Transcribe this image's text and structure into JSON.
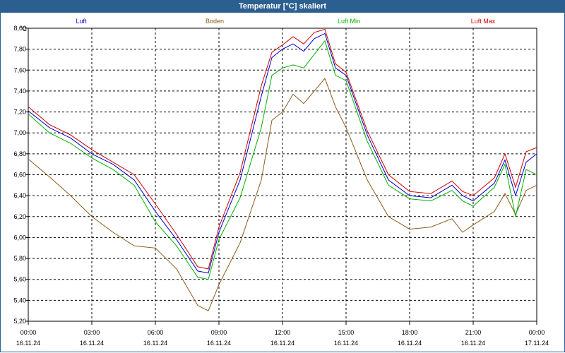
{
  "window": {
    "title": "Temperatur [°C] skaliert"
  },
  "chart_data": {
    "type": "line",
    "title": "Temperatur [°C] skaliert",
    "ylabel": "°C",
    "ylim": [
      5.2,
      8.0
    ],
    "grid": true,
    "legend_placement": "top",
    "y_ticks": [
      "8,00",
      "7,80",
      "7,60",
      "7,40",
      "7,20",
      "7,00",
      "6,80",
      "6,60",
      "6,40",
      "6,20",
      "6,00",
      "5,80",
      "5,60",
      "5,40",
      "5,20"
    ],
    "x_ticks": [
      {
        "time": "00:00",
        "date": "16.11.24"
      },
      {
        "time": "03:00",
        "date": "16.11.24"
      },
      {
        "time": "06:00",
        "date": "16.11.24"
      },
      {
        "time": "09:00",
        "date": "16.11.24"
      },
      {
        "time": "12:00",
        "date": "16.11.24"
      },
      {
        "time": "15:00",
        "date": "16.11.24"
      },
      {
        "time": "18:00",
        "date": "16.11.24"
      },
      {
        "time": "21:00",
        "date": "16.11.24"
      },
      {
        "time": "00:00",
        "date": "17.11.24"
      }
    ],
    "x_hours": [
      0,
      1,
      2,
      3,
      4,
      5,
      6,
      7,
      8,
      8.5,
      9,
      10,
      11,
      11.5,
      12,
      12.5,
      13,
      13.5,
      14,
      14.5,
      15,
      16,
      17,
      18,
      19,
      20,
      20.5,
      21,
      22,
      22.5,
      23,
      23.5,
      24
    ],
    "series": [
      {
        "name": "Luft",
        "color": "#0000cc",
        "values": [
          7.21,
          7.05,
          6.95,
          6.8,
          6.7,
          6.55,
          6.25,
          5.98,
          5.68,
          5.66,
          6.05,
          6.55,
          7.35,
          7.72,
          7.8,
          7.85,
          7.78,
          7.9,
          7.95,
          7.62,
          7.55,
          6.98,
          6.55,
          6.4,
          6.38,
          6.5,
          6.4,
          6.35,
          6.52,
          6.74,
          6.4,
          6.72,
          6.8
        ]
      },
      {
        "name": "Boden",
        "color": "#8b5a1a",
        "values": [
          6.75,
          6.58,
          6.4,
          6.2,
          6.05,
          5.92,
          5.9,
          5.7,
          5.35,
          5.3,
          5.55,
          5.95,
          6.55,
          7.12,
          7.2,
          7.37,
          7.28,
          7.4,
          7.52,
          7.25,
          7.05,
          6.55,
          6.2,
          6.08,
          6.1,
          6.18,
          6.05,
          6.12,
          6.25,
          6.42,
          6.22,
          6.45,
          6.5
        ]
      },
      {
        "name": "Luft Min",
        "color": "#00b000",
        "values": [
          7.18,
          7.0,
          6.9,
          6.76,
          6.65,
          6.5,
          6.15,
          5.92,
          5.62,
          5.6,
          5.98,
          6.38,
          7.05,
          7.55,
          7.62,
          7.65,
          7.62,
          7.75,
          7.88,
          7.55,
          7.5,
          6.92,
          6.5,
          6.37,
          6.35,
          6.45,
          6.35,
          6.3,
          6.48,
          6.7,
          6.2,
          6.65,
          6.6
        ]
      },
      {
        "name": "Luft Max",
        "color": "#cc0000",
        "values": [
          7.25,
          7.08,
          6.98,
          6.84,
          6.72,
          6.6,
          6.32,
          6.03,
          5.72,
          5.7,
          6.1,
          6.62,
          7.45,
          7.77,
          7.84,
          7.92,
          7.85,
          7.96,
          7.99,
          7.66,
          7.58,
          7.02,
          6.6,
          6.44,
          6.42,
          6.54,
          6.44,
          6.4,
          6.57,
          6.8,
          6.48,
          6.82,
          6.86
        ]
      }
    ]
  }
}
